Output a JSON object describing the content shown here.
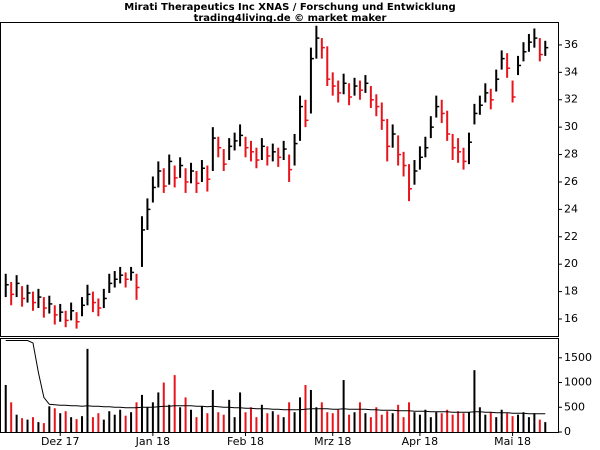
{
  "chart_data": {
    "type": "hlc",
    "title": "Mirati Therapeutics Inc XNAS / Forschung und Entwicklung",
    "subtitle": "trading4living.de © market maker",
    "categories": [
      null,
      null,
      null,
      null,
      null,
      null,
      null,
      null,
      null,
      null,
      "Dez 17",
      null,
      null,
      null,
      null,
      null,
      null,
      null,
      null,
      null,
      null,
      null,
      null,
      null,
      null,
      null,
      null,
      "Jan 18",
      null,
      null,
      null,
      null,
      null,
      null,
      null,
      null,
      null,
      null,
      null,
      null,
      null,
      null,
      null,
      null,
      "Feb 18",
      null,
      null,
      null,
      null,
      null,
      null,
      null,
      null,
      null,
      null,
      null,
      null,
      null,
      null,
      null,
      "Mrz 18",
      null,
      null,
      null,
      null,
      null,
      null,
      null,
      null,
      null,
      null,
      null,
      null,
      null,
      null,
      null,
      "Apr 18",
      null,
      null,
      null,
      null,
      null,
      null,
      null,
      null,
      null,
      null,
      null,
      null,
      null,
      null,
      null,
      null,
      "Mai 18",
      null,
      null,
      null,
      null,
      null,
      null
    ],
    "close": [
      18.5,
      17.8,
      18.6,
      17.5,
      17.9,
      17.2,
      17.6,
      16.8,
      17.1,
      16.3,
      16.5,
      15.9,
      16.6,
      15.8,
      17.0,
      17.8,
      17.2,
      16.8,
      17.5,
      18.6,
      18.9,
      19.2,
      18.9,
      19.4,
      18.3,
      22.5,
      24.0,
      25.6,
      26.8,
      25.7,
      27.5,
      26.3,
      27.2,
      26.0,
      26.8,
      25.9,
      27.0,
      26.2,
      29.2,
      28.5,
      27.3,
      28.6,
      29.0,
      29.4,
      28.5,
      28.2,
      27.6,
      28.6,
      27.9,
      28.2,
      27.8,
      28.4,
      26.9,
      28.8,
      31.5,
      30.5,
      35.0,
      36.5,
      35.8,
      33.5,
      33.0,
      32.5,
      33.2,
      32.2,
      33.0,
      32.7,
      33.2,
      32.0,
      31.5,
      30.5,
      28.6,
      29.5,
      28.0,
      27.2,
      25.5,
      26.8,
      27.8,
      28.5,
      30.0,
      31.5,
      31.0,
      29.5,
      28.5,
      28.2,
      27.5,
      28.9,
      31.0,
      31.6,
      32.5,
      32.0,
      33.5,
      35.0,
      34.3,
      32.2,
      34.5,
      35.5,
      36.2,
      36.5,
      35.3,
      35.8
    ],
    "high": [
      19.3,
      18.7,
      19.2,
      18.4,
      18.5,
      18.0,
      18.2,
      17.6,
      17.7,
      17.0,
      17.1,
      16.6,
      17.2,
      16.5,
      17.6,
      18.5,
      18.0,
      17.5,
      18.2,
      19.3,
      19.5,
      19.8,
      19.4,
      19.8,
      19.3,
      23.5,
      24.8,
      26.4,
      27.5,
      27.0,
      28.0,
      27.2,
      27.8,
      27.0,
      27.4,
      26.8,
      27.6,
      27.2,
      30.0,
      29.3,
      28.4,
      29.2,
      29.6,
      30.2,
      29.3,
      29.0,
      28.5,
      29.2,
      28.6,
      28.8,
      28.5,
      29.0,
      28.0,
      29.5,
      32.3,
      32.0,
      35.8,
      37.4,
      36.5,
      35.9,
      34.0,
      33.4,
      33.9,
      33.2,
      33.6,
      33.4,
      33.8,
      33.0,
      32.4,
      31.8,
      30.6,
      30.2,
      29.4,
      28.2,
      27.3,
      27.6,
      28.6,
      29.3,
      30.8,
      32.3,
      32.0,
      31.2,
      29.5,
      29.2,
      28.5,
      29.6,
      31.7,
      32.3,
      33.2,
      32.8,
      34.2,
      35.6,
      35.4,
      33.4,
      35.2,
      36.2,
      36.8,
      37.2,
      36.5,
      36.3
    ],
    "low": [
      17.6,
      17.0,
      17.6,
      16.9,
      17.2,
      16.6,
      16.8,
      16.1,
      16.4,
      15.6,
      15.8,
      15.4,
      15.9,
      15.3,
      16.2,
      17.0,
      16.5,
      16.2,
      16.8,
      17.9,
      18.3,
      18.6,
      18.3,
      18.8,
      17.4,
      19.8,
      22.5,
      24.5,
      25.6,
      25.2,
      25.8,
      25.6,
      26.3,
      25.2,
      25.9,
      25.2,
      26.0,
      25.3,
      26.8,
      27.8,
      26.8,
      27.6,
      28.3,
      28.6,
      27.8,
      27.5,
      27.0,
      27.6,
      27.2,
      27.5,
      27.1,
      27.6,
      26.0,
      27.2,
      29.0,
      30.0,
      31.0,
      35.0,
      35.0,
      33.0,
      32.3,
      31.8,
      32.4,
      31.6,
      32.3,
      32.0,
      32.5,
      31.4,
      30.8,
      29.8,
      27.5,
      28.5,
      27.2,
      26.4,
      24.6,
      25.8,
      26.9,
      27.8,
      29.2,
      30.7,
      30.3,
      29.0,
      27.6,
      27.4,
      26.9,
      27.3,
      30.2,
      30.9,
      31.8,
      31.3,
      32.6,
      34.2,
      33.6,
      31.8,
      33.8,
      34.8,
      35.5,
      35.8,
      34.8,
      35.2
    ],
    "volume": [
      950,
      600,
      350,
      280,
      250,
      300,
      200,
      180,
      520,
      480,
      380,
      420,
      300,
      260,
      320,
      1680,
      300,
      380,
      250,
      420,
      350,
      450,
      330,
      400,
      600,
      750,
      500,
      600,
      800,
      1000,
      550,
      1150,
      500,
      700,
      450,
      300,
      520,
      380,
      850,
      400,
      350,
      650,
      300,
      800,
      400,
      500,
      300,
      550,
      380,
      420,
      350,
      300,
      600,
      400,
      700,
      950,
      850,
      500,
      600,
      400,
      380,
      450,
      1050,
      350,
      400,
      600,
      380,
      300,
      500,
      350,
      420,
      380,
      550,
      300,
      600,
      400,
      350,
      450,
      300,
      400,
      380,
      450,
      350,
      420,
      380,
      400,
      1250,
      500,
      350,
      400,
      300,
      450,
      380,
      320,
      350,
      400,
      300,
      380,
      250,
      200
    ],
    "volume_avg": [
      1850,
      1850,
      1850,
      1850,
      1850,
      1800,
      1200,
      700,
      560,
      550,
      540,
      540,
      530,
      530,
      520,
      530,
      520,
      520,
      510,
      510,
      500,
      500,
      490,
      490,
      490,
      500,
      500,
      500,
      510,
      520,
      520,
      530,
      530,
      530,
      530,
      520,
      520,
      510,
      520,
      510,
      500,
      500,
      490,
      490,
      480,
      480,
      470,
      470,
      470,
      460,
      460,
      450,
      450,
      450,
      450,
      460,
      470,
      470,
      470,
      470,
      460,
      460,
      470,
      460,
      460,
      460,
      460,
      450,
      450,
      440,
      440,
      440,
      430,
      430,
      430,
      420,
      420,
      420,
      410,
      410,
      410,
      410,
      400,
      400,
      400,
      400,
      410,
      410,
      400,
      400,
      390,
      390,
      390,
      380,
      380,
      380,
      370,
      370,
      370,
      370
    ],
    "up_color": "#000000",
    "down_color": "#e8141c",
    "avg_color": "#000000",
    "ylim": [
      14.76,
      37.6
    ],
    "yticks": [
      16,
      18,
      20,
      22,
      24,
      26,
      28,
      30,
      32,
      34,
      36
    ],
    "y2lim": [
      0,
      1880
    ],
    "y2ticks": [
      0,
      500,
      1000,
      1500
    ]
  }
}
